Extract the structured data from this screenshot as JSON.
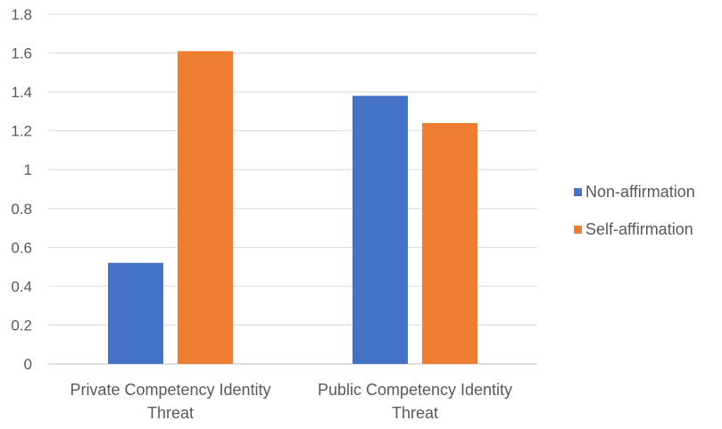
{
  "chart_data": {
    "type": "bar",
    "title": "",
    "xlabel": "",
    "ylabel": "",
    "categories": [
      [
        "Private Competency Identity",
        "Threat"
      ],
      [
        "Public Competency Identity",
        "Threat"
      ]
    ],
    "series": [
      {
        "name": "Non-affirmation",
        "color": "#4472C4",
        "values": [
          0.52,
          1.38
        ]
      },
      {
        "name": "Self-affirmation",
        "color": "#ED7D31",
        "values": [
          1.61,
          1.24
        ]
      }
    ],
    "ylim": [
      0,
      1.8
    ],
    "yticks": [
      "0",
      "0.2",
      "0.4",
      "0.6",
      "0.8",
      "1",
      "1.2",
      "1.4",
      "1.6",
      "1.8"
    ],
    "grid": true,
    "legend_position": "right"
  }
}
